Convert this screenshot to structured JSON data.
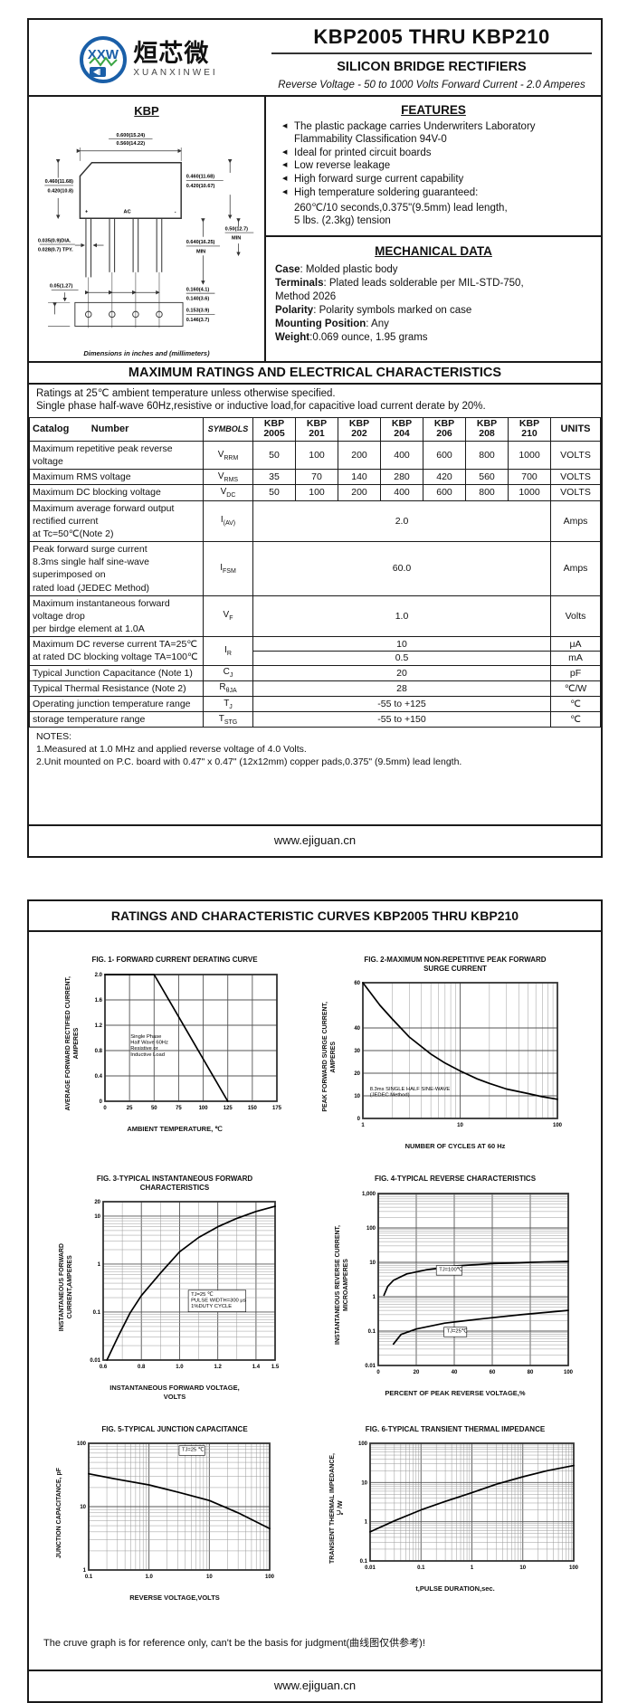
{
  "page1": {
    "logo": {
      "icon": "xxw-bridge-logo",
      "cn": "烜芯微",
      "en": "XUANXINWEI"
    },
    "title": "KBP2005 THRU KBP210",
    "subtitle": "SILICON BRIDGE RECTIFIERS",
    "tagline": "Reverse Voltage - 50 to 1000 Volts   Forward Current - 2.0 Amperes",
    "package": {
      "name": "KBP",
      "caption": "Dimensions in inches and (millimeters)",
      "dims": {
        "top1": "0.600(15.24)",
        "top2": "0.560(14.22)",
        "left1": "0.460(11.68)",
        "left2": "0.420(10.8)",
        "right1": "0.460(11.68)",
        "right2": "0.420(10.67)",
        "lead_dia1": "0.035(0.9)DIA.",
        "lead_dia2": "0.028(0.7) TPY.",
        "lead_len1": "0.640(16.25)",
        "lead_len2": "MIN",
        "side1": "0.50(12.7)",
        "side2": "MIN",
        "offset": "0.05(1.27)",
        "pitch1": "0.160(4.1)",
        "pitch2": "0.140(3.6)",
        "foot1": "0.153(3.9)",
        "foot2": "0.146(3.7)",
        "plus": "+",
        "ac": "AC",
        "minus": "-"
      }
    },
    "features": {
      "heading": "FEATURES",
      "items": [
        "The plastic package carries Underwriters Laboratory\nFlammability Classification 94V-0",
        "Ideal for printed circuit boards",
        "Low reverse leakage",
        "High forward surge current capability",
        "High temperature soldering guaranteed:"
      ],
      "extra": "260℃/10 seconds,0.375\"(9.5mm) lead length,\n5 lbs. (2.3kg) tension"
    },
    "mechanical": {
      "heading": "MECHANICAL DATA",
      "lines": [
        {
          "b": "Case",
          "t": ": Molded plastic body"
        },
        {
          "b": "Terminals",
          "t": ": Plated leads solderable per MIL-STD-750,"
        },
        {
          "b": "",
          "t": " Method 2026"
        },
        {
          "b": "Polarity",
          "t": ": Polarity symbols marked on case"
        },
        {
          "b": "Mounting Position",
          "t": ": Any"
        },
        {
          "b": "Weight",
          "t": ":0.069 ounce, 1.95 grams"
        }
      ]
    },
    "ratings": {
      "heading": "MAXIMUM RATINGS AND ELECTRICAL CHARACTERISTICS",
      "intro": [
        "Ratings at 25℃ ambient temperature unless otherwise specified.",
        "Single phase half-wave 60Hz,resistive or inductive load,for capacitive load current derate by 20%."
      ],
      "table": {
        "corner": "Catalog        Number",
        "symbols": "SYMBOLS",
        "devices": [
          "KBP\n2005",
          "KBP\n201",
          "KBP\n202",
          "KBP\n204",
          "KBP\n206",
          "KBP\n208",
          "KBP\n210"
        ],
        "units": "UNITS",
        "rows": [
          {
            "label": [
              "Maximum repetitive peak reverse voltage"
            ],
            "sym": [
              "V",
              "RRM"
            ],
            "vals": [
              "50",
              "100",
              "200",
              "400",
              "600",
              "800",
              "1000"
            ],
            "unit": "VOLTS"
          },
          {
            "label": [
              "Maximum RMS voltage"
            ],
            "sym": [
              "V",
              "RMS"
            ],
            "vals": [
              "35",
              "70",
              "140",
              "280",
              "420",
              "560",
              "700"
            ],
            "unit": "VOLTS"
          },
          {
            "label": [
              "Maximum DC blocking voltage"
            ],
            "sym": [
              "V",
              "DC"
            ],
            "vals": [
              "50",
              "100",
              "200",
              "400",
              "600",
              "800",
              "1000"
            ],
            "unit": "VOLTS"
          },
          {
            "label": [
              "Maximum average forward output rectified current",
              "at Tc=50℃(Note 2)"
            ],
            "sym": [
              "I",
              "(AV)"
            ],
            "span": "2.0",
            "unit": "Amps"
          },
          {
            "label": [
              "Peak forward surge current",
              "8.3ms single half sine-wave superimposed on",
              "rated load (JEDEC Method)"
            ],
            "sym": [
              "I",
              "FSM"
            ],
            "span": "60.0",
            "unit": "Amps"
          },
          {
            "label": [
              "Maximum instantaneous forward voltage drop",
              "per birdge element at 1.0A"
            ],
            "sym": [
              "V",
              "F"
            ],
            "span": "1.0",
            "unit": "Volts"
          },
          {
            "label": [
              "Maximum DC reverse current      TA=25℃",
              "at rated DC blocking voltage      TA=100℃"
            ],
            "sym": [
              "I",
              "R"
            ],
            "sub": [
              {
                "v": "10",
                "u": "μA"
              },
              {
                "v": "0.5",
                "u": "mA"
              }
            ]
          },
          {
            "label": [
              "Typical Junction Capacitance (Note 1)"
            ],
            "sym": [
              "C",
              "J"
            ],
            "span": "20",
            "unit": "pF"
          },
          {
            "label": [
              "Typical Thermal Resistance (Note 2)"
            ],
            "sym": [
              "R",
              "θJA"
            ],
            "span": "28",
            "unit": "℃/W"
          },
          {
            "label": [
              "Operating junction temperature range"
            ],
            "sym": [
              "T",
              "J"
            ],
            "span": "-55 to +125",
            "unit": "℃"
          },
          {
            "label": [
              "storage temperature range"
            ],
            "sym": [
              "T",
              "STG"
            ],
            "span": "-55 to +150",
            "unit": "℃"
          }
        ]
      },
      "notes": [
        "NOTES:",
        "1.Measured at 1.0 MHz and applied reverse voltage of 4.0 Volts.",
        "2.Unit mounted on P.C. board with 0.47\"  x 0.47\"  (12x12mm) copper pads,0.375\"  (9.5mm) lead length."
      ]
    },
    "footer": "www.ejiguan.cn"
  },
  "page2": {
    "heading": "RATINGS AND CHARACTERISTIC CURVES KBP2005 THRU KBP210",
    "note": "The cruve graph is for reference only, can't be the basis for judgment(曲线图仅供参考)!",
    "footer": "www.ejiguan.cn"
  },
  "chart_data": [
    {
      "id": "fig1",
      "type": "line",
      "pw": 190,
      "ph": 140,
      "ml": 26,
      "title": "FIG. 1- FORWARD CURRENT DERATING CURVE",
      "x": {
        "min": 0,
        "max": 175,
        "ticks": [
          [
            0,
            "0"
          ],
          [
            25,
            "25"
          ],
          [
            50,
            "50"
          ],
          [
            75,
            "75"
          ],
          [
            100,
            "100"
          ],
          [
            125,
            "125"
          ],
          [
            150,
            "150"
          ],
          [
            175,
            "175"
          ]
        ],
        "label": "AMBIENT TEMPERATURE, ℃"
      },
      "y": {
        "min": 0,
        "max": 2,
        "ticks": [
          [
            2,
            "2.0"
          ],
          [
            1.6,
            "1.6"
          ],
          [
            1.2,
            "1.2"
          ],
          [
            0.8,
            "0.8"
          ],
          [
            0.4,
            "0.4"
          ],
          [
            0,
            "0"
          ]
        ],
        "label": "AVERAGE FORWARD RECTIFIED CURRENT,\nAMPERES"
      },
      "series": [
        {
          "name": "derating-curve",
          "points": [
            [
              0,
              2
            ],
            [
              50,
              2
            ],
            [
              125,
              0
            ]
          ]
        }
      ],
      "annotations": [
        {
          "x": 26,
          "y": 1.0,
          "text": [
            "Single Phase",
            "Half Wave 60Hz",
            "Resistive or",
            "Inductive Load"
          ],
          "box": false
        }
      ]
    },
    {
      "id": "fig2",
      "type": "line",
      "pw": 215,
      "ph": 150,
      "ml": 26,
      "title": "FIG. 2-MAXIMUM NON-REPETITIVE PEAK FORWARD\nSURGE CURRENT",
      "x": {
        "log": true,
        "min": 1,
        "max": 100,
        "ticks": [
          [
            1,
            "1"
          ],
          [
            10,
            "10"
          ],
          [
            100,
            "100"
          ]
        ],
        "label": "NUMBER OF CYCLES AT 60 Hz"
      },
      "y": {
        "min": 0,
        "max": 60,
        "ticks": [
          [
            60,
            "60"
          ],
          [
            40,
            "40"
          ],
          [
            30,
            "30"
          ],
          [
            20,
            "20"
          ],
          [
            10,
            "10"
          ],
          [
            0,
            "0"
          ]
        ],
        "label": "PEAK  FORWARD SURGE CURRENT,\nAMPERES"
      },
      "series": [
        {
          "name": "surge-curve",
          "points": [
            [
              1,
              60
            ],
            [
              1.5,
              50
            ],
            [
              2,
              44
            ],
            [
              3,
              36
            ],
            [
              5,
              28.5
            ],
            [
              7,
              24.5
            ],
            [
              10,
              21
            ],
            [
              15,
              17.5
            ],
            [
              20,
              15.5
            ],
            [
              30,
              13
            ],
            [
              50,
              11
            ],
            [
              70,
              9.6
            ],
            [
              100,
              8.5
            ]
          ]
        }
      ],
      "annotations": [
        {
          "x": 1.18,
          "y": 12.5,
          "text": [
            "8.3ms SINGLE HALF SINE-WAVE",
            "(JEDEC Method)"
          ],
          "box": false
        }
      ]
    },
    {
      "id": "fig3",
      "type": "line",
      "pw": 190,
      "ph": 175,
      "ml": 30,
      "title": "FIG. 3-TYPICAL INSTANTANEOUS FORWARD\nCHARACTERISTICS",
      "x": {
        "min": 0.6,
        "max": 1.5,
        "minor": 0.1,
        "ticks": [
          [
            0.6,
            "0.6"
          ],
          [
            0.8,
            "0.8"
          ],
          [
            1,
            "1.0"
          ],
          [
            1.2,
            "1.2"
          ],
          [
            1.4,
            "1.4"
          ],
          [
            1.5,
            "1.5"
          ]
        ],
        "label": "INSTANTANEOUS FORWARD VOLTAGE,\nVOLTS"
      },
      "y": {
        "log": true,
        "min": 0.01,
        "max": 20,
        "ticks": [
          [
            20,
            "20"
          ],
          [
            10,
            "10"
          ],
          [
            1,
            "1"
          ],
          [
            0.1,
            "0.1"
          ],
          [
            0.01,
            "0.01"
          ]
        ],
        "label": "INSTANTANEOUS FORWARD\nCURRENT,AMPERES"
      },
      "series": [
        {
          "name": "forward-characteristic-curve",
          "points": [
            [
              0.62,
              0.01
            ],
            [
              0.68,
              0.032
            ],
            [
              0.74,
              0.095
            ],
            [
              0.8,
              0.22
            ],
            [
              0.9,
              0.65
            ],
            [
              1,
              1.8
            ],
            [
              1.1,
              3.6
            ],
            [
              1.2,
              6
            ],
            [
              1.3,
              9
            ],
            [
              1.4,
              12.5
            ],
            [
              1.5,
              16
            ]
          ]
        }
      ],
      "annotations": [
        {
          "x": 1.06,
          "y": 0.22,
          "text": [
            "TJ=25 ℃",
            "PULSE WIDTH=300 μs",
            "1%DUTY CYCLE"
          ],
          "box": true
        }
      ]
    },
    {
      "id": "fig4",
      "type": "line",
      "pw": 210,
      "ph": 190,
      "ml": 30,
      "title": "FIG. 4-TYPICAL REVERSE CHARACTERISTICS",
      "x": {
        "min": 0,
        "max": 100,
        "ticks": [
          [
            0,
            "0"
          ],
          [
            20,
            "20"
          ],
          [
            40,
            "40"
          ],
          [
            60,
            "60"
          ],
          [
            80,
            "80"
          ],
          [
            100,
            "100"
          ]
        ],
        "label": "PERCENT OF PEAK REVERSE VOLTAGE,%"
      },
      "y": {
        "log": true,
        "min": 0.01,
        "max": 1000,
        "ticks": [
          [
            1000,
            "1,000"
          ],
          [
            100,
            "100"
          ],
          [
            10,
            "10"
          ],
          [
            1,
            "1"
          ],
          [
            0.1,
            "0.1"
          ],
          [
            0.01,
            "0.01"
          ]
        ],
        "label": "INSTANTANEOUS REVERSE CURRENT,\nMICROAMPERES"
      },
      "series": [
        {
          "name": "tj-100c-curve",
          "points": [
            [
              3,
              1.1
            ],
            [
              5,
              2
            ],
            [
              8,
              3
            ],
            [
              15,
              4.6
            ],
            [
              25,
              6
            ],
            [
              40,
              7.8
            ],
            [
              60,
              9.2
            ],
            [
              80,
              10
            ],
            [
              100,
              10.6
            ]
          ]
        },
        {
          "name": "tj-25c-curve",
          "points": [
            [
              8,
              0.042
            ],
            [
              12,
              0.08
            ],
            [
              20,
              0.115
            ],
            [
              35,
              0.17
            ],
            [
              55,
              0.23
            ],
            [
              75,
              0.3
            ],
            [
              100,
              0.4
            ]
          ]
        }
      ],
      "annotations": [
        {
          "x": 32,
          "y": 5.6,
          "text": [
            "TJ=100℃"
          ],
          "box": true
        },
        {
          "x": 36,
          "y": 0.09,
          "text": [
            "TJ=25℃"
          ],
          "box": true
        }
      ]
    },
    {
      "id": "fig5",
      "type": "line",
      "pw": 200,
      "ph": 140,
      "ml": 26,
      "title": "FIG. 5-TYPICAL JUNCTION CAPACITANCE",
      "x": {
        "log": true,
        "min": 0.1,
        "max": 100,
        "ticks": [
          [
            0.1,
            "0.1"
          ],
          [
            1,
            "1.0"
          ],
          [
            10,
            "10"
          ],
          [
            100,
            "100"
          ]
        ],
        "label": "REVERSE VOLTAGE,VOLTS"
      },
      "y": {
        "log": true,
        "min": 1,
        "max": 100,
        "ticks": [
          [
            100,
            "100"
          ],
          [
            10,
            "10"
          ],
          [
            1,
            "1"
          ]
        ],
        "label": "JUNCTION CAPACITANCE, pF"
      },
      "series": [
        {
          "name": "capacitance-curve",
          "points": [
            [
              0.1,
              33
            ],
            [
              0.3,
              27
            ],
            [
              1,
              22
            ],
            [
              3,
              17
            ],
            [
              10,
              12.5
            ],
            [
              30,
              8
            ],
            [
              100,
              4.5
            ]
          ]
        }
      ],
      "annotations": [
        {
          "x": 3.5,
          "y": 75,
          "text": [
            "TJ=25 ℃"
          ],
          "box": true
        }
      ]
    },
    {
      "id": "fig6",
      "type": "line",
      "pw": 225,
      "ph": 130,
      "ml": 26,
      "title": "FIG. 6-TYPICAL TRANSIENT THERMAL IMPEDANCE",
      "x": {
        "log": true,
        "min": 0.01,
        "max": 100,
        "ticks": [
          [
            0.01,
            "0.01"
          ],
          [
            0.1,
            "0.1"
          ],
          [
            1,
            "1"
          ],
          [
            10,
            "10"
          ],
          [
            100,
            "100"
          ]
        ],
        "label": "t,PULSE DURATION,sec."
      },
      "y": {
        "log": true,
        "min": 0.1,
        "max": 100,
        "ticks": [
          [
            100,
            "100"
          ],
          [
            10,
            "10"
          ],
          [
            1,
            "1"
          ],
          [
            0.1,
            "0.1"
          ]
        ],
        "label": "TRANSIENT THERMAL IMPEDANCE,\n℃/W"
      },
      "series": [
        {
          "name": "thermal-impedance-curve",
          "points": [
            [
              0.01,
              0.55
            ],
            [
              0.03,
              1.05
            ],
            [
              0.1,
              2
            ],
            [
              0.3,
              3.3
            ],
            [
              1,
              5.5
            ],
            [
              3,
              9
            ],
            [
              10,
              14
            ],
            [
              30,
              20
            ],
            [
              100,
              27
            ]
          ]
        }
      ]
    }
  ]
}
